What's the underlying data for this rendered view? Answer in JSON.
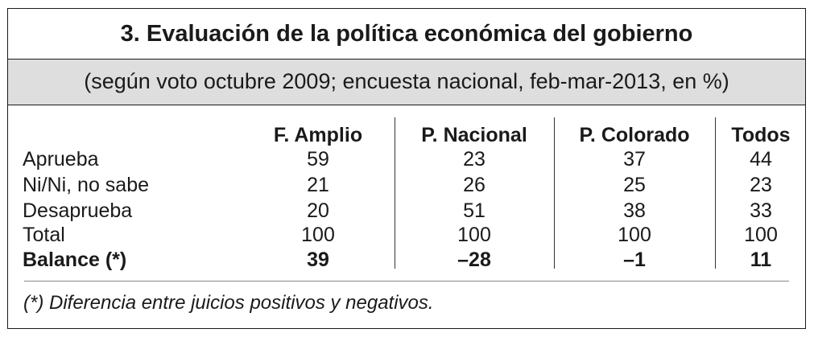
{
  "title": "3. Evaluación de la política económica del gobierno",
  "subtitle": "(según voto octubre 2009; encuesta nacional, feb-mar-2013, en %)",
  "table": {
    "columns": [
      "F. Amplio",
      "P. Nacional",
      "P. Colorado",
      "Todos"
    ],
    "rows": [
      {
        "label": "Aprueba",
        "values": [
          "59",
          "23",
          "37",
          "44"
        ],
        "bold": false
      },
      {
        "label": "Ni/Ni, no sabe",
        "values": [
          "21",
          "26",
          "25",
          "23"
        ],
        "bold": false
      },
      {
        "label": "Desaprueba",
        "values": [
          "20",
          "51",
          "38",
          "33"
        ],
        "bold": false
      },
      {
        "label": "Total",
        "values": [
          "100",
          "100",
          "100",
          "100"
        ],
        "bold": false
      },
      {
        "label": "Balance (*)",
        "values": [
          "39",
          "–28",
          "–1",
          "11"
        ],
        "bold": true
      }
    ]
  },
  "footnote": "(*) Diferencia entre juicios positivos y negativos."
}
